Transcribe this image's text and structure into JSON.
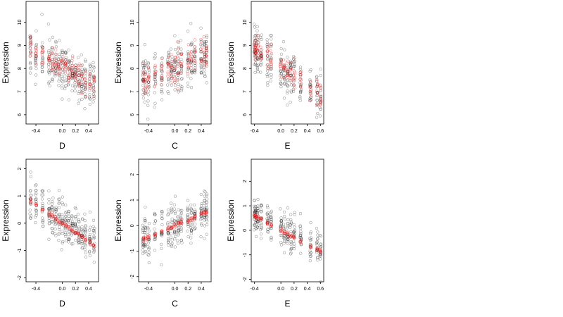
{
  "figure": {
    "background": "#ffffff",
    "series_colors": {
      "observed": "#000000",
      "fitted": "#ff0000"
    }
  },
  "chart_data": [
    {
      "id": "top-left",
      "type": "scatter",
      "xlabel": "D",
      "ylabel": "Expression",
      "xlim": [
        -0.55,
        0.55
      ],
      "ylim": [
        5.6,
        10.9
      ],
      "xticks": [
        -0.4,
        0.0,
        0.2,
        0.4
      ],
      "xtick_labels": [
        "-0.4",
        "0.0",
        "0.2",
        "0.4"
      ],
      "yticks": [
        6,
        7,
        8,
        9,
        10
      ],
      "ytick_labels": [
        "6",
        "7",
        "8",
        "9",
        "10"
      ],
      "x_groups": [
        -0.48,
        -0.4,
        -0.3,
        -0.2,
        -0.15,
        -0.1,
        -0.05,
        0.0,
        0.05,
        0.1,
        0.15,
        0.2,
        0.25,
        0.3,
        0.35,
        0.42,
        0.48
      ],
      "observed": {
        "trend": [
          -1.55,
          8.0
        ],
        "spread": 0.95,
        "per_group": 18,
        "seed": 11
      },
      "fitted": {
        "trend": [
          -1.7,
          8.05
        ],
        "spread": 0.55,
        "per_group": 9,
        "seed": 12
      }
    },
    {
      "id": "top-middle",
      "type": "scatter",
      "xlabel": "C",
      "ylabel": "Expression",
      "xlim": [
        -0.55,
        0.55
      ],
      "ylim": [
        5.6,
        10.9
      ],
      "xticks": [
        -0.4,
        0.0,
        0.2,
        0.4
      ],
      "xtick_labels": [
        "-0.4",
        "0.0",
        "0.2",
        "0.4"
      ],
      "yticks": [
        6,
        7,
        8,
        9,
        10
      ],
      "ytick_labels": [
        "6",
        "7",
        "8",
        "9",
        "10"
      ],
      "x_groups": [
        -0.48,
        -0.45,
        -0.4,
        -0.3,
        -0.2,
        -0.1,
        -0.05,
        0.0,
        0.05,
        0.1,
        0.2,
        0.25,
        0.3,
        0.4,
        0.45,
        0.48
      ],
      "observed": {
        "trend": [
          1.2,
          8.0
        ],
        "spread": 1.0,
        "per_group": 18,
        "seed": 21
      },
      "fitted": {
        "trend": [
          1.15,
          8.05
        ],
        "spread": 0.6,
        "per_group": 9,
        "seed": 22
      }
    },
    {
      "id": "top-right",
      "type": "scatter",
      "xlabel": "E",
      "ylabel": "Expression",
      "xlim": [
        -0.45,
        0.65
      ],
      "ylim": [
        5.6,
        10.9
      ],
      "xticks": [
        -0.4,
        0.0,
        0.2,
        0.4,
        0.6
      ],
      "xtick_labels": [
        "-0.4",
        "0.0",
        "0.2",
        "0.4",
        "0.6"
      ],
      "yticks": [
        6,
        7,
        8,
        9,
        10
      ],
      "ytick_labels": [
        "6",
        "7",
        "8",
        "9",
        "10"
      ],
      "x_groups": [
        -0.4,
        -0.38,
        -0.35,
        -0.3,
        -0.2,
        -0.15,
        0.0,
        0.05,
        0.1,
        0.15,
        0.2,
        0.3,
        0.45,
        0.55,
        0.6
      ],
      "observed": {
        "trend": [
          -2.0,
          8.0
        ],
        "spread": 0.95,
        "per_group": 18,
        "seed": 31
      },
      "fitted": {
        "trend": [
          -2.1,
          8.1
        ],
        "spread": 0.55,
        "per_group": 9,
        "seed": 32
      }
    },
    {
      "id": "bottom-left",
      "type": "scatter",
      "xlabel": "D",
      "ylabel": "Expression",
      "xlim": [
        -0.55,
        0.55
      ],
      "ylim": [
        -2.15,
        2.35
      ],
      "xticks": [
        -0.4,
        0.0,
        0.2,
        0.4
      ],
      "xtick_labels": [
        "-0.4",
        "0.0",
        "0.2",
        "0.4"
      ],
      "yticks": [
        -2,
        -1,
        0,
        1,
        2
      ],
      "ytick_labels": [
        "-2",
        "-1",
        "0",
        "1",
        "2"
      ],
      "x_groups": [
        -0.48,
        -0.4,
        -0.3,
        -0.2,
        -0.15,
        -0.1,
        -0.05,
        0.0,
        0.05,
        0.1,
        0.15,
        0.2,
        0.25,
        0.3,
        0.35,
        0.42,
        0.48
      ],
      "observed": {
        "trend": [
          -1.6,
          0.05
        ],
        "spread": 0.75,
        "per_group": 18,
        "seed": 41
      },
      "fitted": {
        "trend": [
          -1.7,
          0.0
        ],
        "spread": 0.08,
        "per_group": 6,
        "seed": 42
      }
    },
    {
      "id": "bottom-middle",
      "type": "scatter",
      "xlabel": "C",
      "ylabel": "Expression",
      "xlim": [
        -0.55,
        0.55
      ],
      "ylim": [
        -2.2,
        2.6
      ],
      "xticks": [
        -0.4,
        0.0,
        0.2,
        0.4
      ],
      "xtick_labels": [
        "-0.4",
        "0.0",
        "0.2",
        "0.4"
      ],
      "yticks": [
        -2,
        -1,
        0,
        1,
        2
      ],
      "ytick_labels": [
        "-2",
        "-1",
        "0",
        "1",
        "2"
      ],
      "x_groups": [
        -0.48,
        -0.45,
        -0.4,
        -0.3,
        -0.2,
        -0.1,
        -0.05,
        0.0,
        0.05,
        0.1,
        0.2,
        0.25,
        0.3,
        0.4,
        0.45,
        0.48
      ],
      "observed": {
        "trend": [
          1.1,
          0.0
        ],
        "spread": 0.75,
        "per_group": 18,
        "seed": 51
      },
      "fitted": {
        "trend": [
          1.1,
          0.0
        ],
        "spread": 0.08,
        "per_group": 6,
        "seed": 52
      }
    },
    {
      "id": "bottom-right",
      "type": "scatter",
      "xlabel": "E",
      "ylabel": "Expression",
      "xlim": [
        -0.45,
        0.65
      ],
      "ylim": [
        -2.1,
        2.9
      ],
      "xticks": [
        -0.4,
        0.0,
        0.2,
        0.4,
        0.6
      ],
      "xtick_labels": [
        "-0.4",
        "0.0",
        "0.2",
        "0.4",
        "0.6"
      ],
      "yticks": [
        -2,
        -1,
        0,
        1,
        2
      ],
      "ytick_labels": [
        "-2",
        "-1",
        "0",
        "1",
        "2"
      ],
      "x_groups": [
        -0.4,
        -0.38,
        -0.35,
        -0.3,
        -0.2,
        -0.15,
        0.0,
        0.05,
        0.1,
        0.15,
        0.2,
        0.3,
        0.45,
        0.55,
        0.6
      ],
      "observed": {
        "trend": [
          -1.4,
          0.1
        ],
        "spread": 0.7,
        "per_group": 18,
        "seed": 61
      },
      "fitted": {
        "trend": [
          -1.45,
          0.0
        ],
        "spread": 0.08,
        "per_group": 6,
        "seed": 62
      }
    }
  ]
}
